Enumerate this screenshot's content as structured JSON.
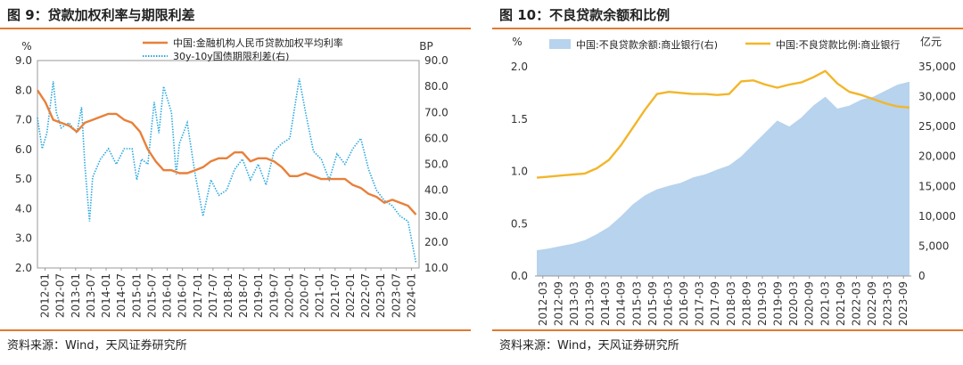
{
  "chart_data": [
    {
      "type": "line",
      "title": "图 9：贷款加权利率与期限利差",
      "ylabel": "%",
      "y2label": "BP",
      "ylim": [
        2.0,
        9.0
      ],
      "y2lim": [
        10.0,
        90.0
      ],
      "yticks": [
        "2.0",
        "3.0",
        "4.0",
        "5.0",
        "6.0",
        "7.0",
        "8.0",
        "9.0"
      ],
      "y2ticks": [
        "10.0",
        "20.0",
        "30.0",
        "40.0",
        "50.0",
        "60.0",
        "70.0",
        "80.0",
        "90.0"
      ],
      "xticks": [
        "2012-01",
        "2012-07",
        "2013-01",
        "2013-07",
        "2014-01",
        "2014-07",
        "2015-01",
        "2015-07",
        "2016-01",
        "2016-07",
        "2017-01",
        "2017-07",
        "2018-01",
        "2018-07",
        "2019-01",
        "2019-07",
        "2020-01",
        "2020-07",
        "2021-01",
        "2021-07",
        "2022-01",
        "2022-07",
        "2023-01",
        "2023-07",
        "2024-01"
      ],
      "series": [
        {
          "name": "中国:金融机构人民币贷款加权平均利率",
          "axis": "left",
          "color": "#e8803a",
          "points": [
            [
              2012.0,
              8.0
            ],
            [
              2012.25,
              7.6
            ],
            [
              2012.5,
              7.0
            ],
            [
              2012.75,
              6.9
            ],
            [
              2013.0,
              6.8
            ],
            [
              2013.25,
              6.6
            ],
            [
              2013.5,
              6.9
            ],
            [
              2013.75,
              7.0
            ],
            [
              2014.0,
              7.1
            ],
            [
              2014.25,
              7.2
            ],
            [
              2014.5,
              7.2
            ],
            [
              2014.75,
              7.0
            ],
            [
              2015.0,
              6.9
            ],
            [
              2015.25,
              6.6
            ],
            [
              2015.5,
              6.0
            ],
            [
              2015.75,
              5.6
            ],
            [
              2016.0,
              5.3
            ],
            [
              2016.25,
              5.3
            ],
            [
              2016.5,
              5.2
            ],
            [
              2016.75,
              5.2
            ],
            [
              2017.0,
              5.3
            ],
            [
              2017.25,
              5.4
            ],
            [
              2017.5,
              5.6
            ],
            [
              2017.75,
              5.7
            ],
            [
              2018.0,
              5.7
            ],
            [
              2018.25,
              5.9
            ],
            [
              2018.5,
              5.9
            ],
            [
              2018.75,
              5.6
            ],
            [
              2019.0,
              5.7
            ],
            [
              2019.25,
              5.7
            ],
            [
              2019.5,
              5.6
            ],
            [
              2019.75,
              5.4
            ],
            [
              2020.0,
              5.1
            ],
            [
              2020.25,
              5.1
            ],
            [
              2020.5,
              5.2
            ],
            [
              2020.75,
              5.1
            ],
            [
              2021.0,
              5.0
            ],
            [
              2021.25,
              5.0
            ],
            [
              2021.5,
              5.0
            ],
            [
              2021.75,
              5.0
            ],
            [
              2022.0,
              4.8
            ],
            [
              2022.25,
              4.7
            ],
            [
              2022.5,
              4.5
            ],
            [
              2022.75,
              4.4
            ],
            [
              2023.0,
              4.2
            ],
            [
              2023.25,
              4.3
            ],
            [
              2023.5,
              4.2
            ],
            [
              2023.75,
              4.1
            ],
            [
              2024.0,
              3.8
            ]
          ]
        },
        {
          "name": "30y-10y国债期限利差(右)",
          "axis": "right",
          "color": "#2aa8e0",
          "dotted": true,
          "points": [
            [
              2012.0,
              68
            ],
            [
              2012.15,
              56
            ],
            [
              2012.3,
              62
            ],
            [
              2012.5,
              82
            ],
            [
              2012.6,
              70
            ],
            [
              2012.75,
              64
            ],
            [
              2013.0,
              66
            ],
            [
              2013.25,
              62
            ],
            [
              2013.4,
              72
            ],
            [
              2013.5,
              50
            ],
            [
              2013.65,
              28
            ],
            [
              2013.75,
              45
            ],
            [
              2014.0,
              52
            ],
            [
              2014.25,
              56
            ],
            [
              2014.5,
              50
            ],
            [
              2014.75,
              56
            ],
            [
              2015.0,
              56
            ],
            [
              2015.15,
              44
            ],
            [
              2015.3,
              52
            ],
            [
              2015.5,
              50
            ],
            [
              2015.7,
              74
            ],
            [
              2015.85,
              62
            ],
            [
              2016.0,
              80
            ],
            [
              2016.25,
              70
            ],
            [
              2016.4,
              46
            ],
            [
              2016.5,
              58
            ],
            [
              2016.75,
              66
            ],
            [
              2017.0,
              46
            ],
            [
              2017.25,
              30
            ],
            [
              2017.5,
              44
            ],
            [
              2017.75,
              38
            ],
            [
              2018.0,
              40
            ],
            [
              2018.25,
              48
            ],
            [
              2018.5,
              52
            ],
            [
              2018.75,
              44
            ],
            [
              2019.0,
              50
            ],
            [
              2019.25,
              42
            ],
            [
              2019.5,
              55
            ],
            [
              2019.75,
              58
            ],
            [
              2020.0,
              60
            ],
            [
              2020.3,
              83
            ],
            [
              2020.5,
              70
            ],
            [
              2020.75,
              55
            ],
            [
              2021.0,
              52
            ],
            [
              2021.25,
              44
            ],
            [
              2021.5,
              54
            ],
            [
              2021.75,
              50
            ],
            [
              2022.0,
              56
            ],
            [
              2022.25,
              60
            ],
            [
              2022.5,
              48
            ],
            [
              2022.75,
              40
            ],
            [
              2023.0,
              36
            ],
            [
              2023.25,
              34
            ],
            [
              2023.5,
              30
            ],
            [
              2023.75,
              28
            ],
            [
              2024.0,
              12
            ]
          ]
        }
      ]
    },
    {
      "type": "area+line",
      "title": "图 10：不良贷款余额和比例",
      "ylabel": "%",
      "y2label": "亿元",
      "ylim": [
        0.0,
        2.0
      ],
      "y2lim": [
        0,
        35000
      ],
      "yticks": [
        "0.0",
        "0.5",
        "1.0",
        "1.5",
        "2.0"
      ],
      "y2ticks": [
        "0",
        "5,000",
        "10,000",
        "15,000",
        "20,000",
        "25,000",
        "30,000",
        "35,000"
      ],
      "xticks": [
        "2012-03",
        "2012-09",
        "2013-03",
        "2013-09",
        "2014-03",
        "2014-09",
        "2015-03",
        "2015-09",
        "2016-03",
        "2016-09",
        "2017-03",
        "2017-09",
        "2018-03",
        "2018-09",
        "2019-03",
        "2019-09",
        "2020-03",
        "2020-09",
        "2021-03",
        "2021-09",
        "2022-03",
        "2022-09",
        "2023-03",
        "2023-09"
      ],
      "series": [
        {
          "name": "中国:不良贷款余额:商业银行(右)",
          "axis": "right",
          "color": "#b7d3ed",
          "values": [
            4300,
            4600,
            5000,
            5400,
            6000,
            7000,
            8200,
            10000,
            12000,
            13500,
            14500,
            15100,
            15600,
            16500,
            17000,
            17800,
            18500,
            20000,
            22000,
            24000,
            26000,
            25000,
            26500,
            28500,
            30000,
            28000,
            28500,
            29500,
            30000,
            31000,
            32000,
            32500
          ]
        },
        {
          "name": "中国:不良贷款比例:商业银行",
          "axis": "left",
          "color": "#f2b62a",
          "values": [
            0.94,
            0.95,
            0.96,
            0.97,
            0.98,
            1.03,
            1.11,
            1.25,
            1.42,
            1.59,
            1.74,
            1.76,
            1.75,
            1.74,
            1.74,
            1.73,
            1.74,
            1.86,
            1.87,
            1.83,
            1.8,
            1.83,
            1.85,
            1.9,
            1.96,
            1.84,
            1.76,
            1.73,
            1.69,
            1.65,
            1.62,
            1.61
          ]
        }
      ]
    }
  ],
  "panel9": {
    "title": "图 9：贷款加权利率与期限利差",
    "source": "资料来源：Wind，天风证券研究所",
    "left_unit": "%",
    "right_unit": "BP",
    "legend": [
      "中国:金融机构人民币贷款加权平均利率",
      "30y-10y国债期限利差(右)"
    ]
  },
  "panel10": {
    "title": "图 10：不良贷款余额和比例",
    "source": "资料来源：Wind，天风证券研究所",
    "left_unit": "%",
    "right_unit": "亿元",
    "legend": [
      "中国:不良贷款余额:商业银行(右)",
      "中国:不良贷款比例:商业银行"
    ]
  },
  "colors": {
    "rule": "#e07a2e",
    "orange_line": "#e8803a",
    "blue_dotted": "#2aa8e0",
    "area_fill": "#b7d3ed",
    "yellow_line": "#f2b62a"
  }
}
